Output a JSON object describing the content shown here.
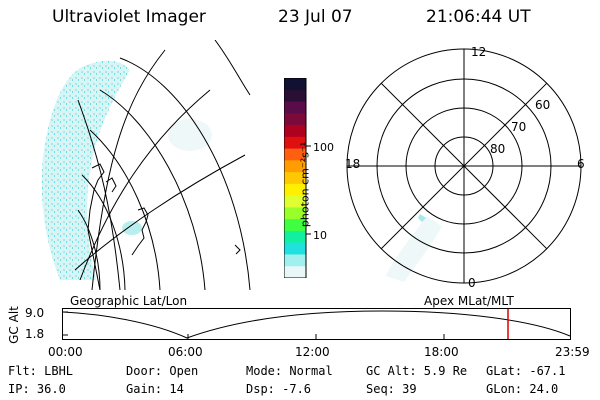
{
  "header": {
    "instrument": "Ultraviolet Imager",
    "date": "23 Jul 07",
    "time": "21:06:44 UT"
  },
  "colorbar": {
    "label": "photon cm⁻²s⁻¹",
    "ticks": [
      "100",
      "10"
    ],
    "colors": [
      "#111133",
      "#2a0f35",
      "#5a0c4a",
      "#7b0a3a",
      "#b00020",
      "#e01010",
      "#ff6010",
      "#ff9c00",
      "#ffc800",
      "#fff000",
      "#e0ff30",
      "#98ff28",
      "#40ff40",
      "#10f0a0",
      "#20e0e0",
      "#a0f0f0",
      "#e8f8f8"
    ]
  },
  "polar": {
    "hour_labels": [
      "12",
      "18",
      "6",
      "0"
    ],
    "lat_labels": [
      "60",
      "70",
      "80"
    ]
  },
  "panels": {
    "left_caption": "Geographic Lat/Lon",
    "right_caption": "Apex MLat/MLT"
  },
  "orbit": {
    "ylabel": "GC Alt",
    "y_ticks": [
      "9.0",
      "1.8"
    ],
    "x_ticks": [
      "00:00",
      "06:00",
      "12:00",
      "18:00",
      "23:59"
    ]
  },
  "status": {
    "flt": "Flt: LBHL",
    "ip": "IP: 36.0",
    "door": "Door: Open",
    "gain": "Gain: 14",
    "mode": "Mode: Normal",
    "dsp": "Dsp:  -7.6",
    "gcalt": "GC Alt: 5.9 Re",
    "seq": "Seq: 39",
    "glat": "GLat: -67.1",
    "glon": "GLon: 24.0"
  }
}
